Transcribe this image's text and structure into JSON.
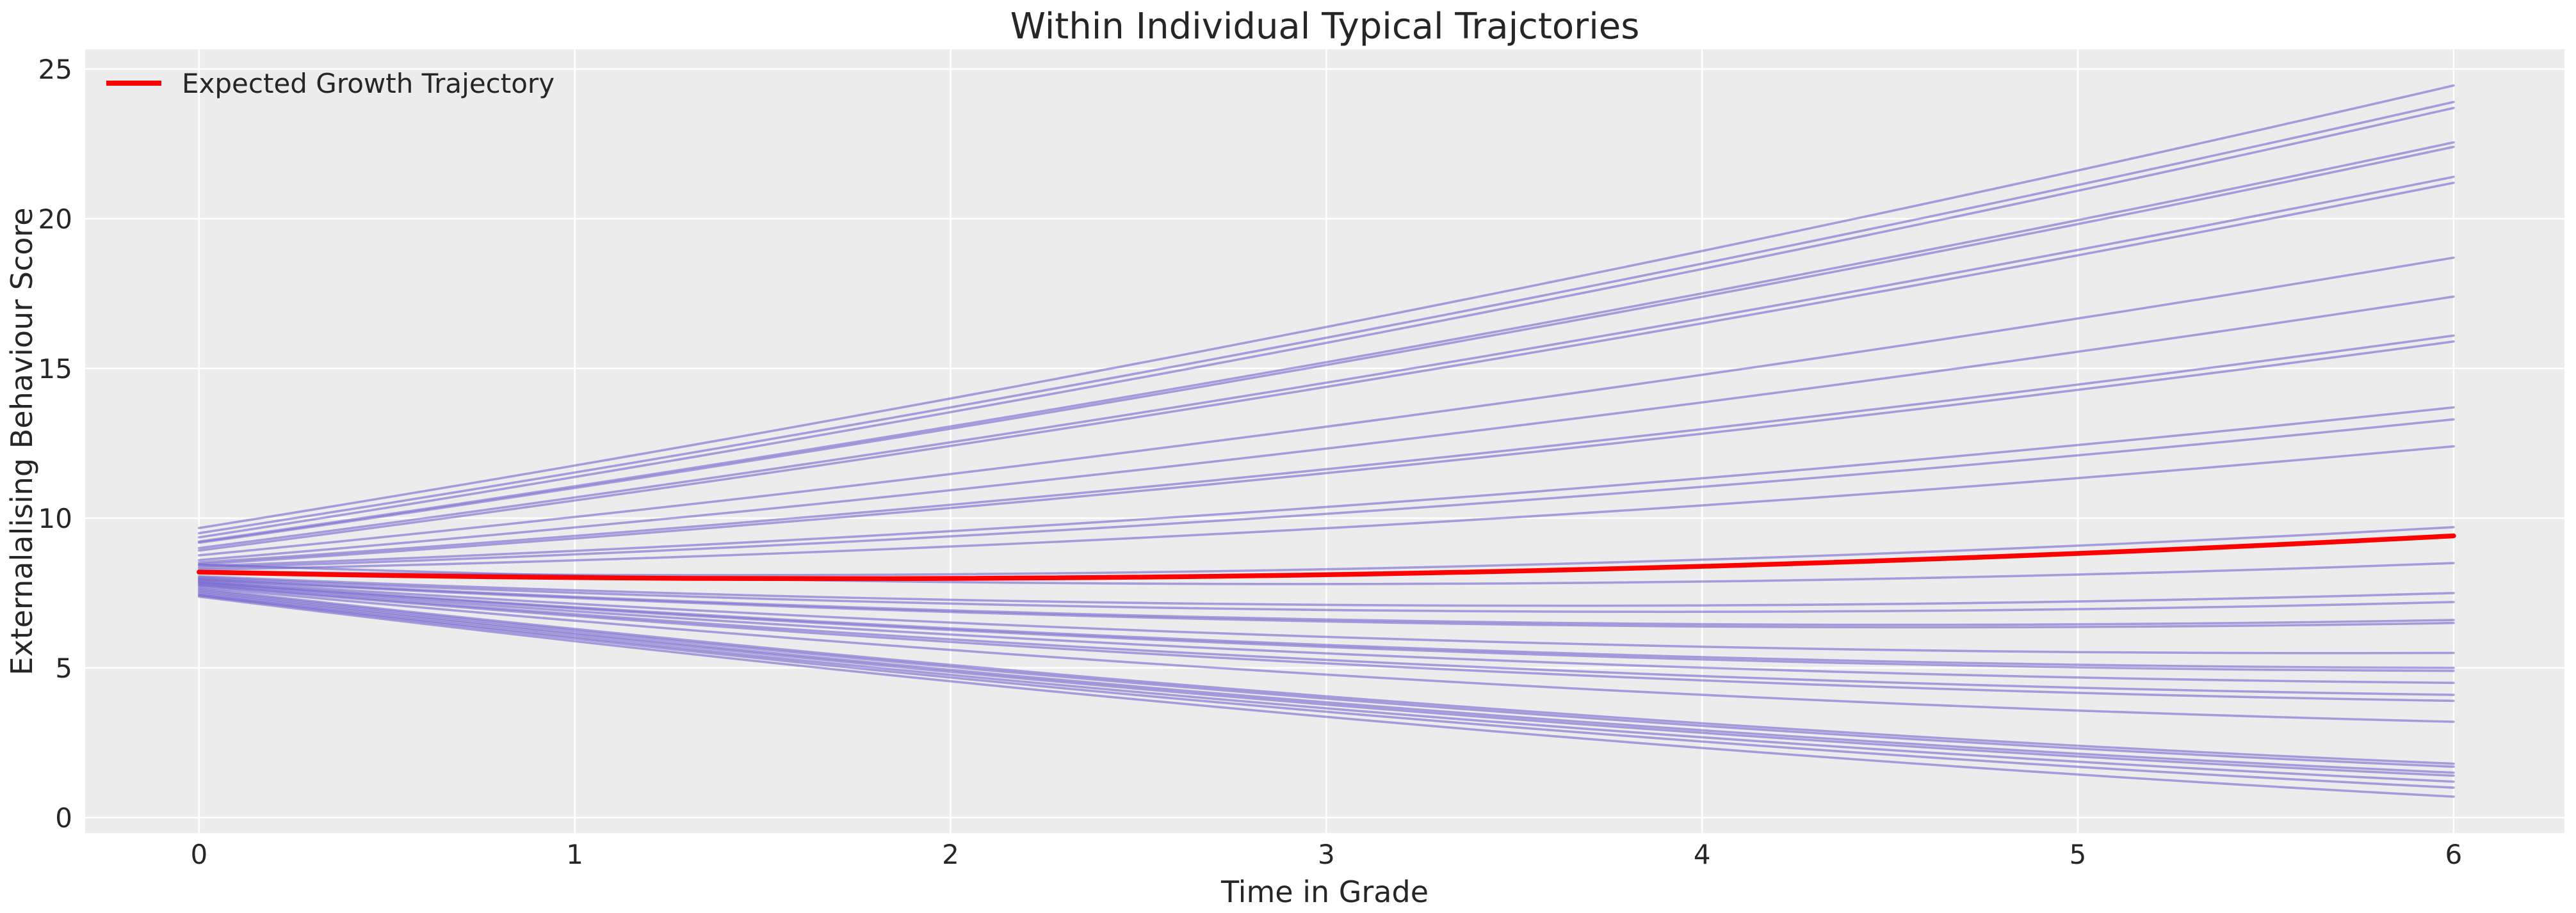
{
  "styles": {
    "figure_background": "#ffffff",
    "axes_background": "#ececec",
    "grid_color": "#ffffff",
    "grid_width": 2.5,
    "text_color": "#262626",
    "individual_color": "#6a5acd",
    "individual_opacity": 0.55,
    "individual_width": 3.6,
    "expected_color": "#ff0000",
    "expected_width": 7.5
  },
  "chart_data": {
    "type": "line",
    "title": "Within Individual Typical Trajctories",
    "xlabel": "Time in Grade",
    "ylabel": "Externalalising Behaviour Score",
    "xlim": [
      -0.303,
      6.295
    ],
    "ylim": [
      -0.515,
      25.66
    ],
    "x_ticks": [
      0,
      1,
      2,
      3,
      4,
      5,
      6
    ],
    "y_ticks": [
      0,
      5,
      10,
      15,
      20,
      25
    ],
    "grid": true,
    "legend": {
      "position": "upper-left",
      "frame": false,
      "entries": [
        {
          "label": "Expected Growth Trajectory",
          "color": "#ff0000"
        }
      ]
    },
    "expected_trajectory": {
      "name": "Expected Growth Trajectory",
      "color": "#ff0000",
      "curvature": 0.077,
      "x": [
        0,
        1,
        2,
        3,
        4,
        5,
        6
      ],
      "y": [
        8.2,
        8.02,
        7.99,
        8.11,
        8.39,
        8.82,
        9.41
      ]
    },
    "individual_trajectories": {
      "description": "Within-individual quadratic growth trajectories; each line spans Time in Grade 0 to 6",
      "color": "#6a5acd",
      "opacity": 0.55,
      "curvature": 0.075,
      "x_range": [
        0,
        6
      ],
      "lines": [
        {
          "y_start": 9.67,
          "y_end": 24.45
        },
        {
          "y_start": 9.5,
          "y_end": 23.9
        },
        {
          "y_start": 9.36,
          "y_end": 23.7
        },
        {
          "y_start": 9.22,
          "y_end": 22.55
        },
        {
          "y_start": 9.18,
          "y_end": 22.4
        },
        {
          "y_start": 9.0,
          "y_end": 21.4
        },
        {
          "y_start": 8.92,
          "y_end": 21.2
        },
        {
          "y_start": 8.76,
          "y_end": 18.7
        },
        {
          "y_start": 8.6,
          "y_end": 17.4
        },
        {
          "y_start": 8.52,
          "y_end": 16.1
        },
        {
          "y_start": 8.46,
          "y_end": 15.9
        },
        {
          "y_start": 8.4,
          "y_end": 13.7
        },
        {
          "y_start": 8.34,
          "y_end": 13.3
        },
        {
          "y_start": 8.28,
          "y_end": 12.4
        },
        {
          "y_start": 8.24,
          "y_end": 9.7
        },
        {
          "y_start": 8.45,
          "y_end": 8.5
        },
        {
          "y_start": 8.06,
          "y_end": 7.5
        },
        {
          "y_start": 8.02,
          "y_end": 7.2
        },
        {
          "y_start": 7.98,
          "y_end": 6.6
        },
        {
          "y_start": 7.95,
          "y_end": 6.5
        },
        {
          "y_start": 7.92,
          "y_end": 5.5
        },
        {
          "y_start": 7.88,
          "y_end": 5.0
        },
        {
          "y_start": 7.85,
          "y_end": 4.9
        },
        {
          "y_start": 7.82,
          "y_end": 4.5
        },
        {
          "y_start": 7.78,
          "y_end": 4.1
        },
        {
          "y_start": 7.75,
          "y_end": 3.9
        },
        {
          "y_start": 7.7,
          "y_end": 3.2
        },
        {
          "y_start": 7.65,
          "y_end": 1.8
        },
        {
          "y_start": 7.6,
          "y_end": 1.7
        },
        {
          "y_start": 7.55,
          "y_end": 1.5
        },
        {
          "y_start": 7.5,
          "y_end": 1.4
        },
        {
          "y_start": 7.45,
          "y_end": 1.2
        },
        {
          "y_start": 7.42,
          "y_end": 1.0
        },
        {
          "y_start": 7.38,
          "y_end": 0.7
        }
      ]
    }
  }
}
